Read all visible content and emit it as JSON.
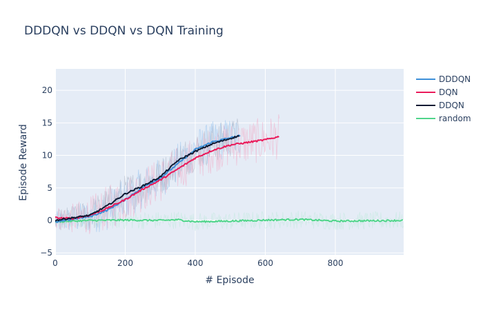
{
  "chart_data": {
    "type": "line",
    "title": "DDDQN vs DDQN vs DQN Training",
    "xlabel": "# Episode",
    "ylabel": "Episode Reward",
    "xlim": [
      0,
      995
    ],
    "ylim": [
      -5.3,
      23.3
    ],
    "x_ticks": [
      0,
      200,
      400,
      600,
      800
    ],
    "y_ticks": [
      -5,
      0,
      5,
      10,
      15,
      20
    ],
    "grid": true,
    "legend_position": "top-right",
    "plot_background": "#e5ecf6",
    "series": [
      {
        "name": "DDDQN",
        "color": "#3c8fd9",
        "raw_color": "#8ec0ee",
        "length": 530,
        "noise": 3.2,
        "smooth_points": [
          [
            0,
            -0.3
          ],
          [
            50,
            0.2
          ],
          [
            100,
            0.6
          ],
          [
            150,
            1.6
          ],
          [
            200,
            3.2
          ],
          [
            250,
            5.1
          ],
          [
            300,
            6.5
          ],
          [
            350,
            8.7
          ],
          [
            400,
            10.9
          ],
          [
            450,
            12.1
          ],
          [
            500,
            12.7
          ],
          [
            525,
            13.0
          ]
        ]
      },
      {
        "name": "DQN",
        "color": "#ea1a5a",
        "raw_color": "#f3a9c4",
        "length": 640,
        "noise": 3.5,
        "smooth_points": [
          [
            0,
            0.4
          ],
          [
            50,
            0.3
          ],
          [
            100,
            0.8
          ],
          [
            150,
            1.9
          ],
          [
            200,
            3.2
          ],
          [
            250,
            4.8
          ],
          [
            300,
            6.2
          ],
          [
            350,
            7.9
          ],
          [
            400,
            9.6
          ],
          [
            450,
            10.8
          ],
          [
            500,
            11.6
          ],
          [
            550,
            12.0
          ],
          [
            600,
            12.4
          ],
          [
            640,
            12.9
          ]
        ]
      },
      {
        "name": "DDQN",
        "color": "#0d1a33",
        "raw_color": "#a9b2c2",
        "length": 525,
        "noise": 3.0,
        "smooth_points": [
          [
            0,
            0.0
          ],
          [
            50,
            0.4
          ],
          [
            100,
            0.8
          ],
          [
            150,
            2.3
          ],
          [
            200,
            4.1
          ],
          [
            250,
            5.3
          ],
          [
            300,
            6.7
          ],
          [
            350,
            9.2
          ],
          [
            400,
            10.6
          ],
          [
            450,
            11.8
          ],
          [
            500,
            12.6
          ],
          [
            525,
            13.0
          ]
        ]
      },
      {
        "name": "random",
        "color": "#4fd48a",
        "raw_color": "#bfe9dd",
        "length": 995,
        "noise": 1.4,
        "smooth_points": [
          [
            0,
            -0.2
          ],
          [
            100,
            0.0
          ],
          [
            200,
            0.05
          ],
          [
            300,
            0.0
          ],
          [
            350,
            0.1
          ],
          [
            400,
            -0.2
          ],
          [
            500,
            -0.1
          ],
          [
            600,
            0.05
          ],
          [
            700,
            0.15
          ],
          [
            800,
            -0.1
          ],
          [
            900,
            -0.05
          ],
          [
            995,
            0.0
          ]
        ]
      }
    ]
  }
}
